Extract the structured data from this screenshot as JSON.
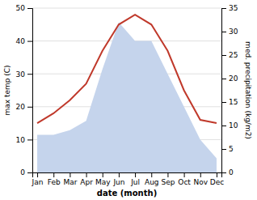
{
  "chart_data": {
    "type": "line",
    "categories": [
      "Jan",
      "Feb",
      "Mar",
      "Apr",
      "May",
      "Jun",
      "Jul",
      "Aug",
      "Sep",
      "Oct",
      "Nov",
      "Dec"
    ],
    "x_label": "date (month)",
    "y_label": "max temp (C)",
    "y2_label": "med. precipitation (kg/m2)",
    "ylim": [
      0,
      50
    ],
    "yticks": [
      0,
      10,
      20,
      30,
      40,
      50
    ],
    "y2lim": [
      0,
      35
    ],
    "y2ticks": [
      0,
      5,
      10,
      15,
      20,
      25,
      30,
      35
    ],
    "grid": true,
    "series": [
      {
        "type": "area",
        "axis": "y2",
        "color": "#c5d4ec",
        "values": [
          8,
          8,
          9,
          11,
          22,
          32,
          28,
          28,
          21,
          14,
          7,
          3
        ]
      },
      {
        "type": "line",
        "color": "#c0392b",
        "values": [
          15,
          18,
          22,
          27,
          37,
          45,
          48,
          45,
          37,
          25,
          16,
          15
        ]
      }
    ]
  }
}
